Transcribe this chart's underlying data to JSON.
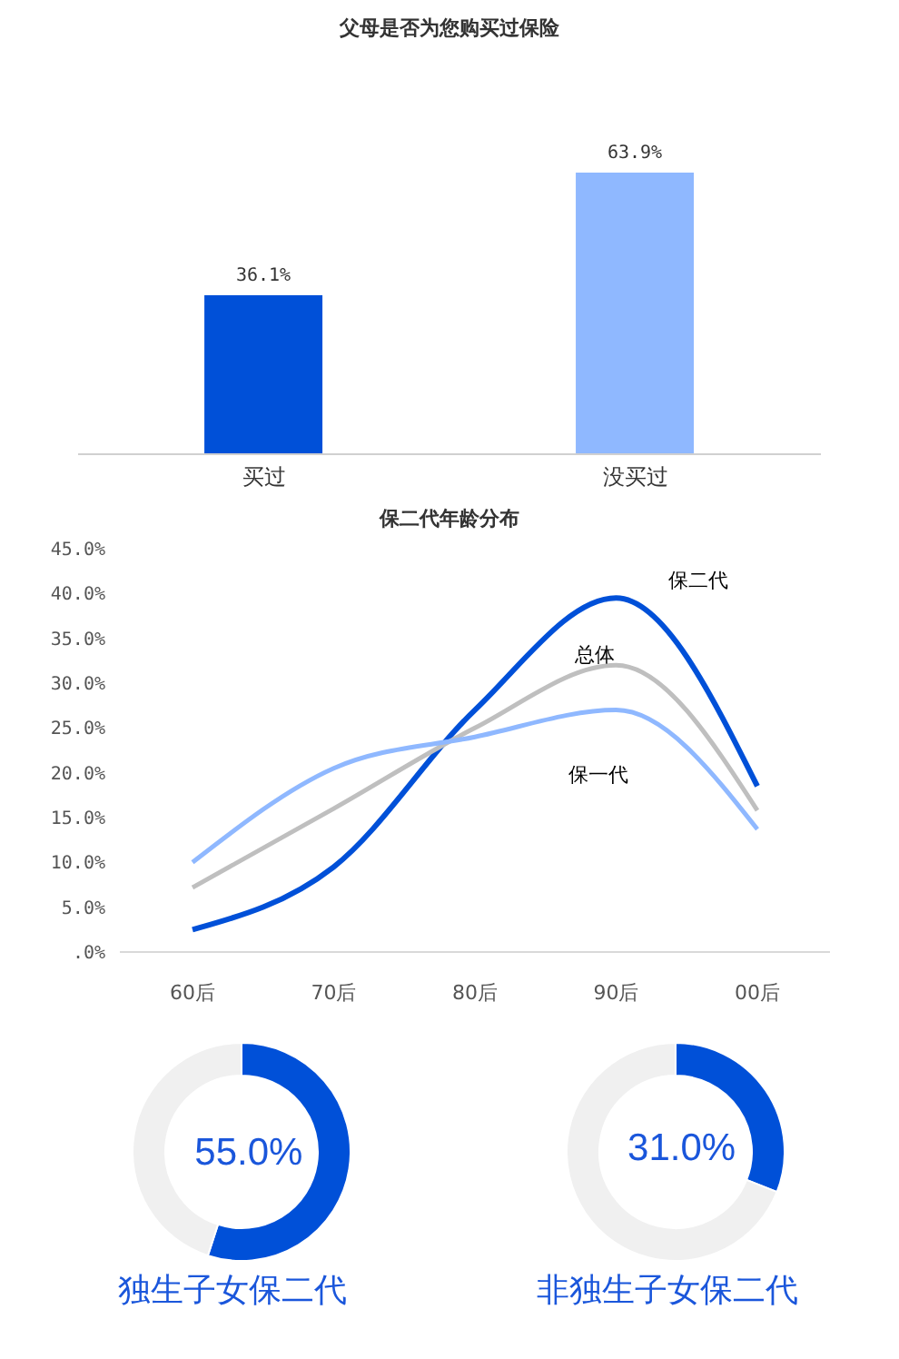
{
  "chart_data": [
    {
      "type": "bar",
      "title": "父母是否为您购买过保险",
      "categories": [
        "买过",
        "没买过"
      ],
      "values": [
        36.1,
        63.9
      ],
      "colors": [
        "#0050d8",
        "#8fb8ff"
      ],
      "value_labels": [
        "36.1%",
        "63.9%"
      ],
      "grid": false,
      "legend": false,
      "tick_labels": "x"
    },
    {
      "type": "line",
      "title": "保二代年龄分布",
      "categories": [
        "60后",
        "70后",
        "80后",
        "90后",
        "00后"
      ],
      "series": [
        {
          "name": "保二代",
          "color": "#0050d8",
          "values": [
            2.5,
            9.5,
            27,
            39.5,
            18.5
          ]
        },
        {
          "name": "总体",
          "color": "#bfbfbf",
          "values": [
            7.2,
            16,
            25,
            32,
            15.8
          ]
        },
        {
          "name": "保一代",
          "color": "#8fb8ff",
          "values": [
            10,
            20.5,
            24,
            27,
            13.7
          ]
        }
      ],
      "ylim": [
        0,
        45
      ],
      "yticks": [
        {
          "value": 0,
          "label": ".0%"
        },
        {
          "value": 5,
          "label": "5.0%"
        },
        {
          "value": 10,
          "label": "10.0%"
        },
        {
          "value": 15,
          "label": "15.0%"
        },
        {
          "value": 20,
          "label": "20.0%"
        },
        {
          "value": 25,
          "label": "25.0%"
        },
        {
          "value": 30,
          "label": "30.0%"
        },
        {
          "value": 35,
          "label": "35.0%"
        },
        {
          "value": 40,
          "label": "40.0%"
        },
        {
          "value": 45,
          "label": "45.0%"
        }
      ],
      "grid": false,
      "legend": false,
      "marker": "none",
      "line_style": "solid"
    },
    {
      "type": "donut",
      "title": "独生子女保二代",
      "categories": [
        null,
        null
      ],
      "values": [
        55,
        45
      ],
      "colors": [
        "#0050d8",
        "#f0f0f0"
      ],
      "value_labels": [
        "55.0%",
        null
      ],
      "legend": false
    },
    {
      "type": "donut",
      "title": "非独生子女保二代",
      "categories": [
        null,
        null
      ],
      "values": [
        31,
        69
      ],
      "colors": [
        "#0050d8",
        "#f0f0f0"
      ],
      "value_labels": [
        "31.0%",
        null
      ],
      "legend": false
    }
  ]
}
